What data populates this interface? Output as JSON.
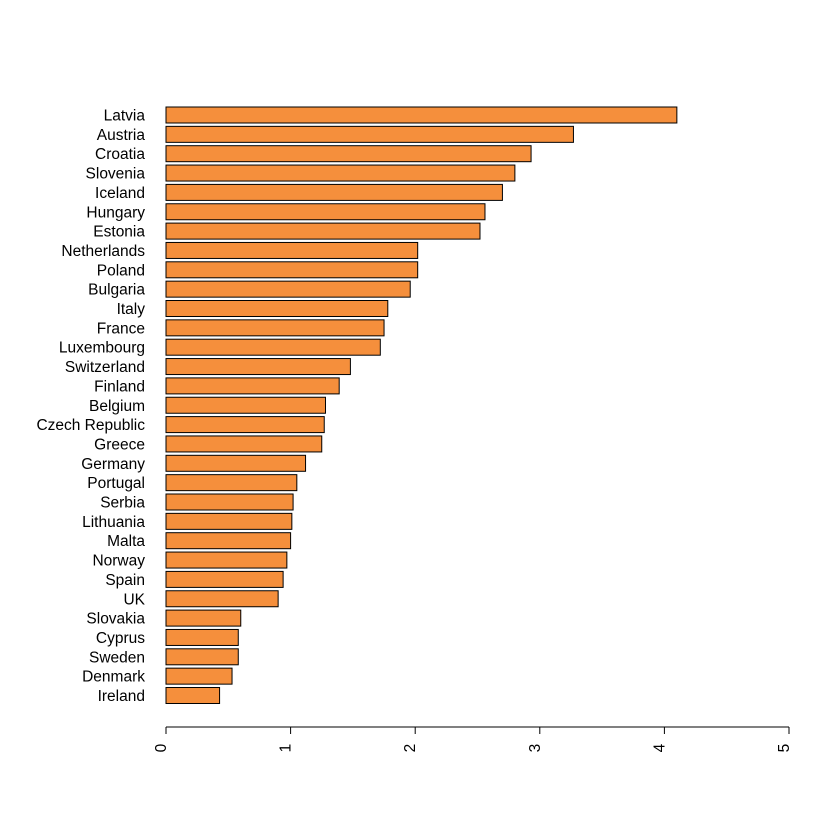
{
  "chart_data": {
    "type": "bar",
    "orientation": "horizontal",
    "title": "",
    "xlabel": "",
    "ylabel": "",
    "xlim": [
      0,
      5
    ],
    "xticks": [
      0,
      1,
      2,
      3,
      4,
      5
    ],
    "bar_color": "#F58F3C",
    "categories": [
      "Latvia",
      "Austria",
      "Croatia",
      "Slovenia",
      "Iceland",
      "Hungary",
      "Estonia",
      "Netherlands",
      "Poland",
      "Bulgaria",
      "Italy",
      "France",
      "Luxembourg",
      "Switzerland",
      "Finland",
      "Belgium",
      "Czech Republic",
      "Greece",
      "Germany",
      "Portugal",
      "Serbia",
      "Lithuania",
      "Malta",
      "Norway",
      "Spain",
      "UK",
      "Slovakia",
      "Cyprus",
      "Sweden",
      "Denmark",
      "Ireland"
    ],
    "values": [
      4.1,
      3.27,
      2.93,
      2.8,
      2.7,
      2.56,
      2.52,
      2.02,
      2.02,
      1.96,
      1.78,
      1.75,
      1.72,
      1.48,
      1.39,
      1.28,
      1.27,
      1.25,
      1.12,
      1.05,
      1.02,
      1.01,
      1.0,
      0.97,
      0.94,
      0.9,
      0.6,
      0.58,
      0.58,
      0.53,
      0.43
    ],
    "grid": false,
    "legend": "none"
  }
}
